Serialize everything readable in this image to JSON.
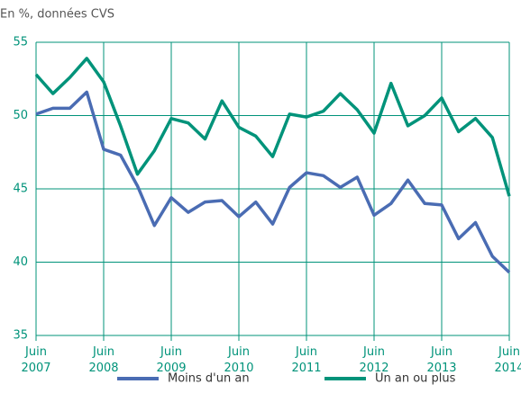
{
  "chart_data": {
    "type": "line",
    "subtitle": "En %, données CVS",
    "categories": [
      "Juin 2007",
      null,
      null,
      null,
      "Juin 2008",
      null,
      null,
      null,
      "Juin 2009",
      null,
      null,
      null,
      "Juin 2010",
      null,
      null,
      null,
      "Juin 2011",
      null,
      null,
      null,
      "Juin 2012",
      null,
      null,
      null,
      "Juin 2013",
      null,
      null,
      null,
      "Juin 2014"
    ],
    "series": [
      {
        "name": "Moins d'un an",
        "color": "#4a6cb3",
        "values": [
          50.1,
          50.5,
          50.5,
          51.6,
          47.7,
          47.3,
          45.2,
          42.5,
          44.4,
          43.4,
          44.1,
          44.2,
          43.1,
          44.1,
          42.6,
          45.1,
          46.1,
          45.9,
          45.1,
          45.8,
          43.2,
          44.0,
          45.6,
          44.0,
          43.9,
          41.6,
          42.7,
          40.4,
          39.3
        ]
      },
      {
        "name": "Un an ou plus",
        "color": "#00937a",
        "values": [
          52.8,
          51.5,
          52.6,
          53.9,
          52.3,
          49.3,
          46.0,
          47.6,
          49.8,
          49.5,
          48.4,
          51.0,
          49.2,
          48.6,
          47.2,
          50.1,
          49.9,
          50.3,
          51.5,
          50.4,
          48.8,
          52.2,
          49.3,
          50.0,
          51.2,
          48.9,
          49.8,
          48.5,
          44.5
        ]
      }
    ],
    "ylim": [
      35,
      55
    ],
    "yticks": [
      35,
      40,
      45,
      50,
      55
    ],
    "grid": true,
    "legend": "bottom",
    "axis_color": "#00937a"
  }
}
